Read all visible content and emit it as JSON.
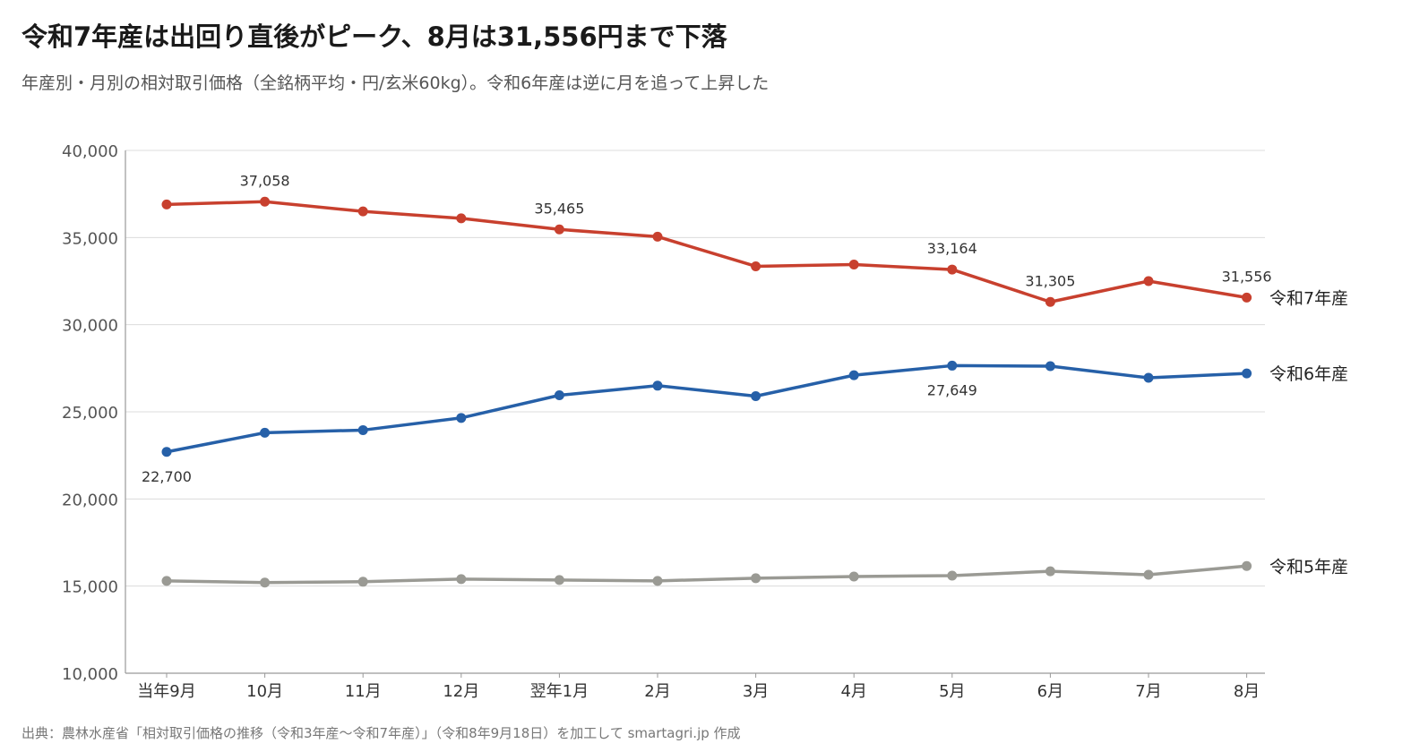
{
  "title": "令和7年産は出回り直後がピーク、8月は31,556円まで下落",
  "subtitle": "年産別・月別の相対取引価格（全銘柄平均・円/玄米60kg）。令和6年産は逆に月を追って上昇した",
  "source": "出典：農林水産省「相対取引価格の推移（令和3年産〜令和7年産）」（令和8年9月18日）を加工して smartagri.jp 作成",
  "chart_data": {
    "type": "line",
    "categories": [
      "当年9月",
      "10月",
      "11月",
      "12月",
      "翌年1月",
      "2月",
      "3月",
      "4月",
      "5月",
      "6月",
      "7月",
      "8月"
    ],
    "yticks": [
      "10,000",
      "15,000",
      "20,000",
      "25,000",
      "30,000",
      "35,000",
      "40,000"
    ],
    "ylim": [
      10000,
      40000
    ],
    "grid": true,
    "legend": "none (series labels at line ends)",
    "series": [
      {
        "name": "令和7年産",
        "color": "#c8402e",
        "values": [
          36900,
          37058,
          36500,
          36100,
          35465,
          35050,
          33350,
          33450,
          33164,
          31305,
          32500,
          31556
        ],
        "labels": [
          {
            "index": 1,
            "text": "37,058",
            "pos": "above"
          },
          {
            "index": 4,
            "text": "35,465",
            "pos": "above"
          },
          {
            "index": 8,
            "text": "33,164",
            "pos": "above"
          },
          {
            "index": 9,
            "text": "31,305",
            "pos": "above"
          },
          {
            "index": 11,
            "text": "31,556",
            "pos": "above"
          }
        ]
      },
      {
        "name": "令和6年産",
        "color": "#2660a8",
        "values": [
          22700,
          23800,
          23950,
          24650,
          25950,
          26500,
          25900,
          27100,
          27649,
          27620,
          26950,
          27200
        ],
        "labels": [
          {
            "index": 0,
            "text": "22,700",
            "pos": "below"
          },
          {
            "index": 8,
            "text": "27,649",
            "pos": "below"
          }
        ]
      },
      {
        "name": "令和5年産",
        "color": "#9a9a94",
        "values": [
          15300,
          15200,
          15250,
          15400,
          15350,
          15300,
          15450,
          15550,
          15600,
          15850,
          15650,
          16150
        ],
        "labels": []
      }
    ]
  }
}
